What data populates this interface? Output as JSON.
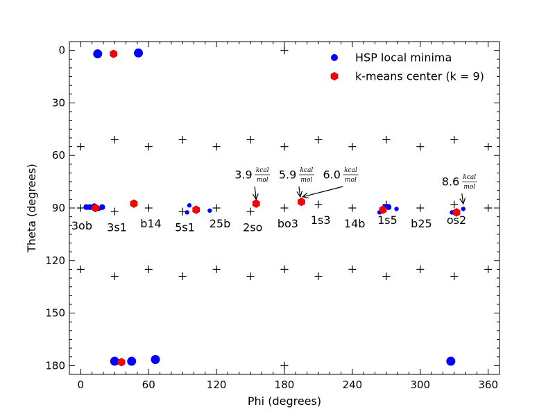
{
  "chart_data": {
    "type": "scatter",
    "xlabel": "Phi (degrees)",
    "ylabel": "Theta (degrees)",
    "xlim": [
      -10,
      370
    ],
    "ylim": [
      185,
      -5
    ],
    "y_inverted": true,
    "xticks": [
      0,
      60,
      120,
      180,
      240,
      300,
      360
    ],
    "yticks": [
      0,
      30,
      60,
      90,
      120,
      150,
      180
    ],
    "grid": false,
    "legend_position": "top-right",
    "colors": {
      "minima": "#0000ff",
      "centers": "#ff0000",
      "pucker": "#000000"
    },
    "series": [
      {
        "name": "HSP local minima",
        "marker": "circle",
        "points": [
          {
            "x": 15,
            "y": 2,
            "size": "large"
          },
          {
            "x": 51,
            "y": 1.5,
            "size": "large"
          },
          {
            "x": 5,
            "y": 89.5,
            "size": "medium"
          },
          {
            "x": 8,
            "y": 89.5,
            "size": "medium"
          },
          {
            "x": 12,
            "y": 89,
            "size": "medium"
          },
          {
            "x": 16,
            "y": 90.5,
            "size": "small"
          },
          {
            "x": 19,
            "y": 89.5,
            "size": "medium"
          },
          {
            "x": 96,
            "y": 88.5,
            "size": "small"
          },
          {
            "x": 94,
            "y": 92.5,
            "size": "small"
          },
          {
            "x": 114,
            "y": 91.5,
            "size": "small"
          },
          {
            "x": 264,
            "y": 92.5,
            "size": "small"
          },
          {
            "x": 269,
            "y": 89.5,
            "size": "medium"
          },
          {
            "x": 272,
            "y": 89.5,
            "size": "medium"
          },
          {
            "x": 279,
            "y": 90.5,
            "size": "small"
          },
          {
            "x": 328,
            "y": 92.5,
            "size": "small"
          },
          {
            "x": 338,
            "y": 90.5,
            "size": "small"
          },
          {
            "x": 30,
            "y": 177.5,
            "size": "large"
          },
          {
            "x": 45,
            "y": 177.5,
            "size": "large"
          },
          {
            "x": 66,
            "y": 176.5,
            "size": "large"
          },
          {
            "x": 327,
            "y": 177.5,
            "size": "large"
          }
        ]
      },
      {
        "name": "k-means center (k = 9)",
        "marker": "hexagon",
        "points": [
          {
            "x": 29,
            "y": 2
          },
          {
            "x": 13,
            "y": 90
          },
          {
            "x": 47,
            "y": 87.5
          },
          {
            "x": 102,
            "y": 91
          },
          {
            "x": 155,
            "y": 87.5
          },
          {
            "x": 195,
            "y": 86.5
          },
          {
            "x": 267,
            "y": 91
          },
          {
            "x": 332,
            "y": 92.5
          },
          {
            "x": 36,
            "y": 178
          }
        ]
      }
    ],
    "pucker_reference": {
      "marker": "plus",
      "points": [
        {
          "x": 180,
          "y": 0
        },
        {
          "x": 0,
          "y": 55
        },
        {
          "x": 30,
          "y": 51
        },
        {
          "x": 60,
          "y": 55
        },
        {
          "x": 90,
          "y": 51
        },
        {
          "x": 120,
          "y": 55
        },
        {
          "x": 150,
          "y": 51
        },
        {
          "x": 180,
          "y": 55
        },
        {
          "x": 210,
          "y": 51
        },
        {
          "x": 240,
          "y": 55
        },
        {
          "x": 270,
          "y": 51
        },
        {
          "x": 300,
          "y": 55
        },
        {
          "x": 330,
          "y": 51
        },
        {
          "x": 360,
          "y": 55
        },
        {
          "x": 0,
          "y": 90
        },
        {
          "x": 30,
          "y": 92
        },
        {
          "x": 60,
          "y": 90
        },
        {
          "x": 90,
          "y": 92
        },
        {
          "x": 120,
          "y": 90
        },
        {
          "x": 150,
          "y": 92
        },
        {
          "x": 180,
          "y": 90
        },
        {
          "x": 210,
          "y": 88
        },
        {
          "x": 240,
          "y": 90
        },
        {
          "x": 270,
          "y": 88
        },
        {
          "x": 300,
          "y": 90
        },
        {
          "x": 330,
          "y": 88
        },
        {
          "x": 360,
          "y": 90
        },
        {
          "x": 0,
          "y": 125
        },
        {
          "x": 30,
          "y": 129
        },
        {
          "x": 60,
          "y": 125
        },
        {
          "x": 90,
          "y": 129
        },
        {
          "x": 120,
          "y": 125
        },
        {
          "x": 150,
          "y": 129
        },
        {
          "x": 180,
          "y": 125
        },
        {
          "x": 210,
          "y": 129
        },
        {
          "x": 240,
          "y": 125
        },
        {
          "x": 270,
          "y": 129
        },
        {
          "x": 300,
          "y": 125
        },
        {
          "x": 330,
          "y": 129
        },
        {
          "x": 360,
          "y": 125
        },
        {
          "x": 180,
          "y": 180
        }
      ]
    },
    "pucker_labels": [
      {
        "label": "3ob",
        "x": 1,
        "y": 100
      },
      {
        "label": "3s1",
        "x": 32,
        "y": 101
      },
      {
        "label": "b14",
        "x": 62,
        "y": 99
      },
      {
        "label": "5s1",
        "x": 92,
        "y": 101
      },
      {
        "label": "25b",
        "x": 123,
        "y": 99
      },
      {
        "label": "2so",
        "x": 152,
        "y": 101
      },
      {
        "label": "bo3",
        "x": 183,
        "y": 99
      },
      {
        "label": "1s3",
        "x": 212,
        "y": 97
      },
      {
        "label": "14b",
        "x": 242,
        "y": 99
      },
      {
        "label": "1s5",
        "x": 271,
        "y": 97
      },
      {
        "label": "b25",
        "x": 301,
        "y": 99
      },
      {
        "label": "os2",
        "x": 332,
        "y": 97
      }
    ],
    "annotations": [
      {
        "value": "3.9",
        "numerator": "kcal",
        "denominator": "mol",
        "text_x": 136,
        "text_y": 71,
        "point_x": 155,
        "point_y": 87.5
      },
      {
        "value": "5.9",
        "numerator": "kcal",
        "denominator": "mol",
        "text_x": 175,
        "text_y": 71,
        "point_x": 194,
        "point_y": 86
      },
      {
        "value": "6.0",
        "numerator": "kcal",
        "denominator": "mol",
        "text_x": 214,
        "text_y": 71,
        "point_x": 196,
        "point_y": 86
      },
      {
        "value": "8.6",
        "numerator": "kcal",
        "denominator": "mol",
        "text_x": 319,
        "text_y": 75,
        "point_x": 338,
        "point_y": 90
      }
    ]
  }
}
